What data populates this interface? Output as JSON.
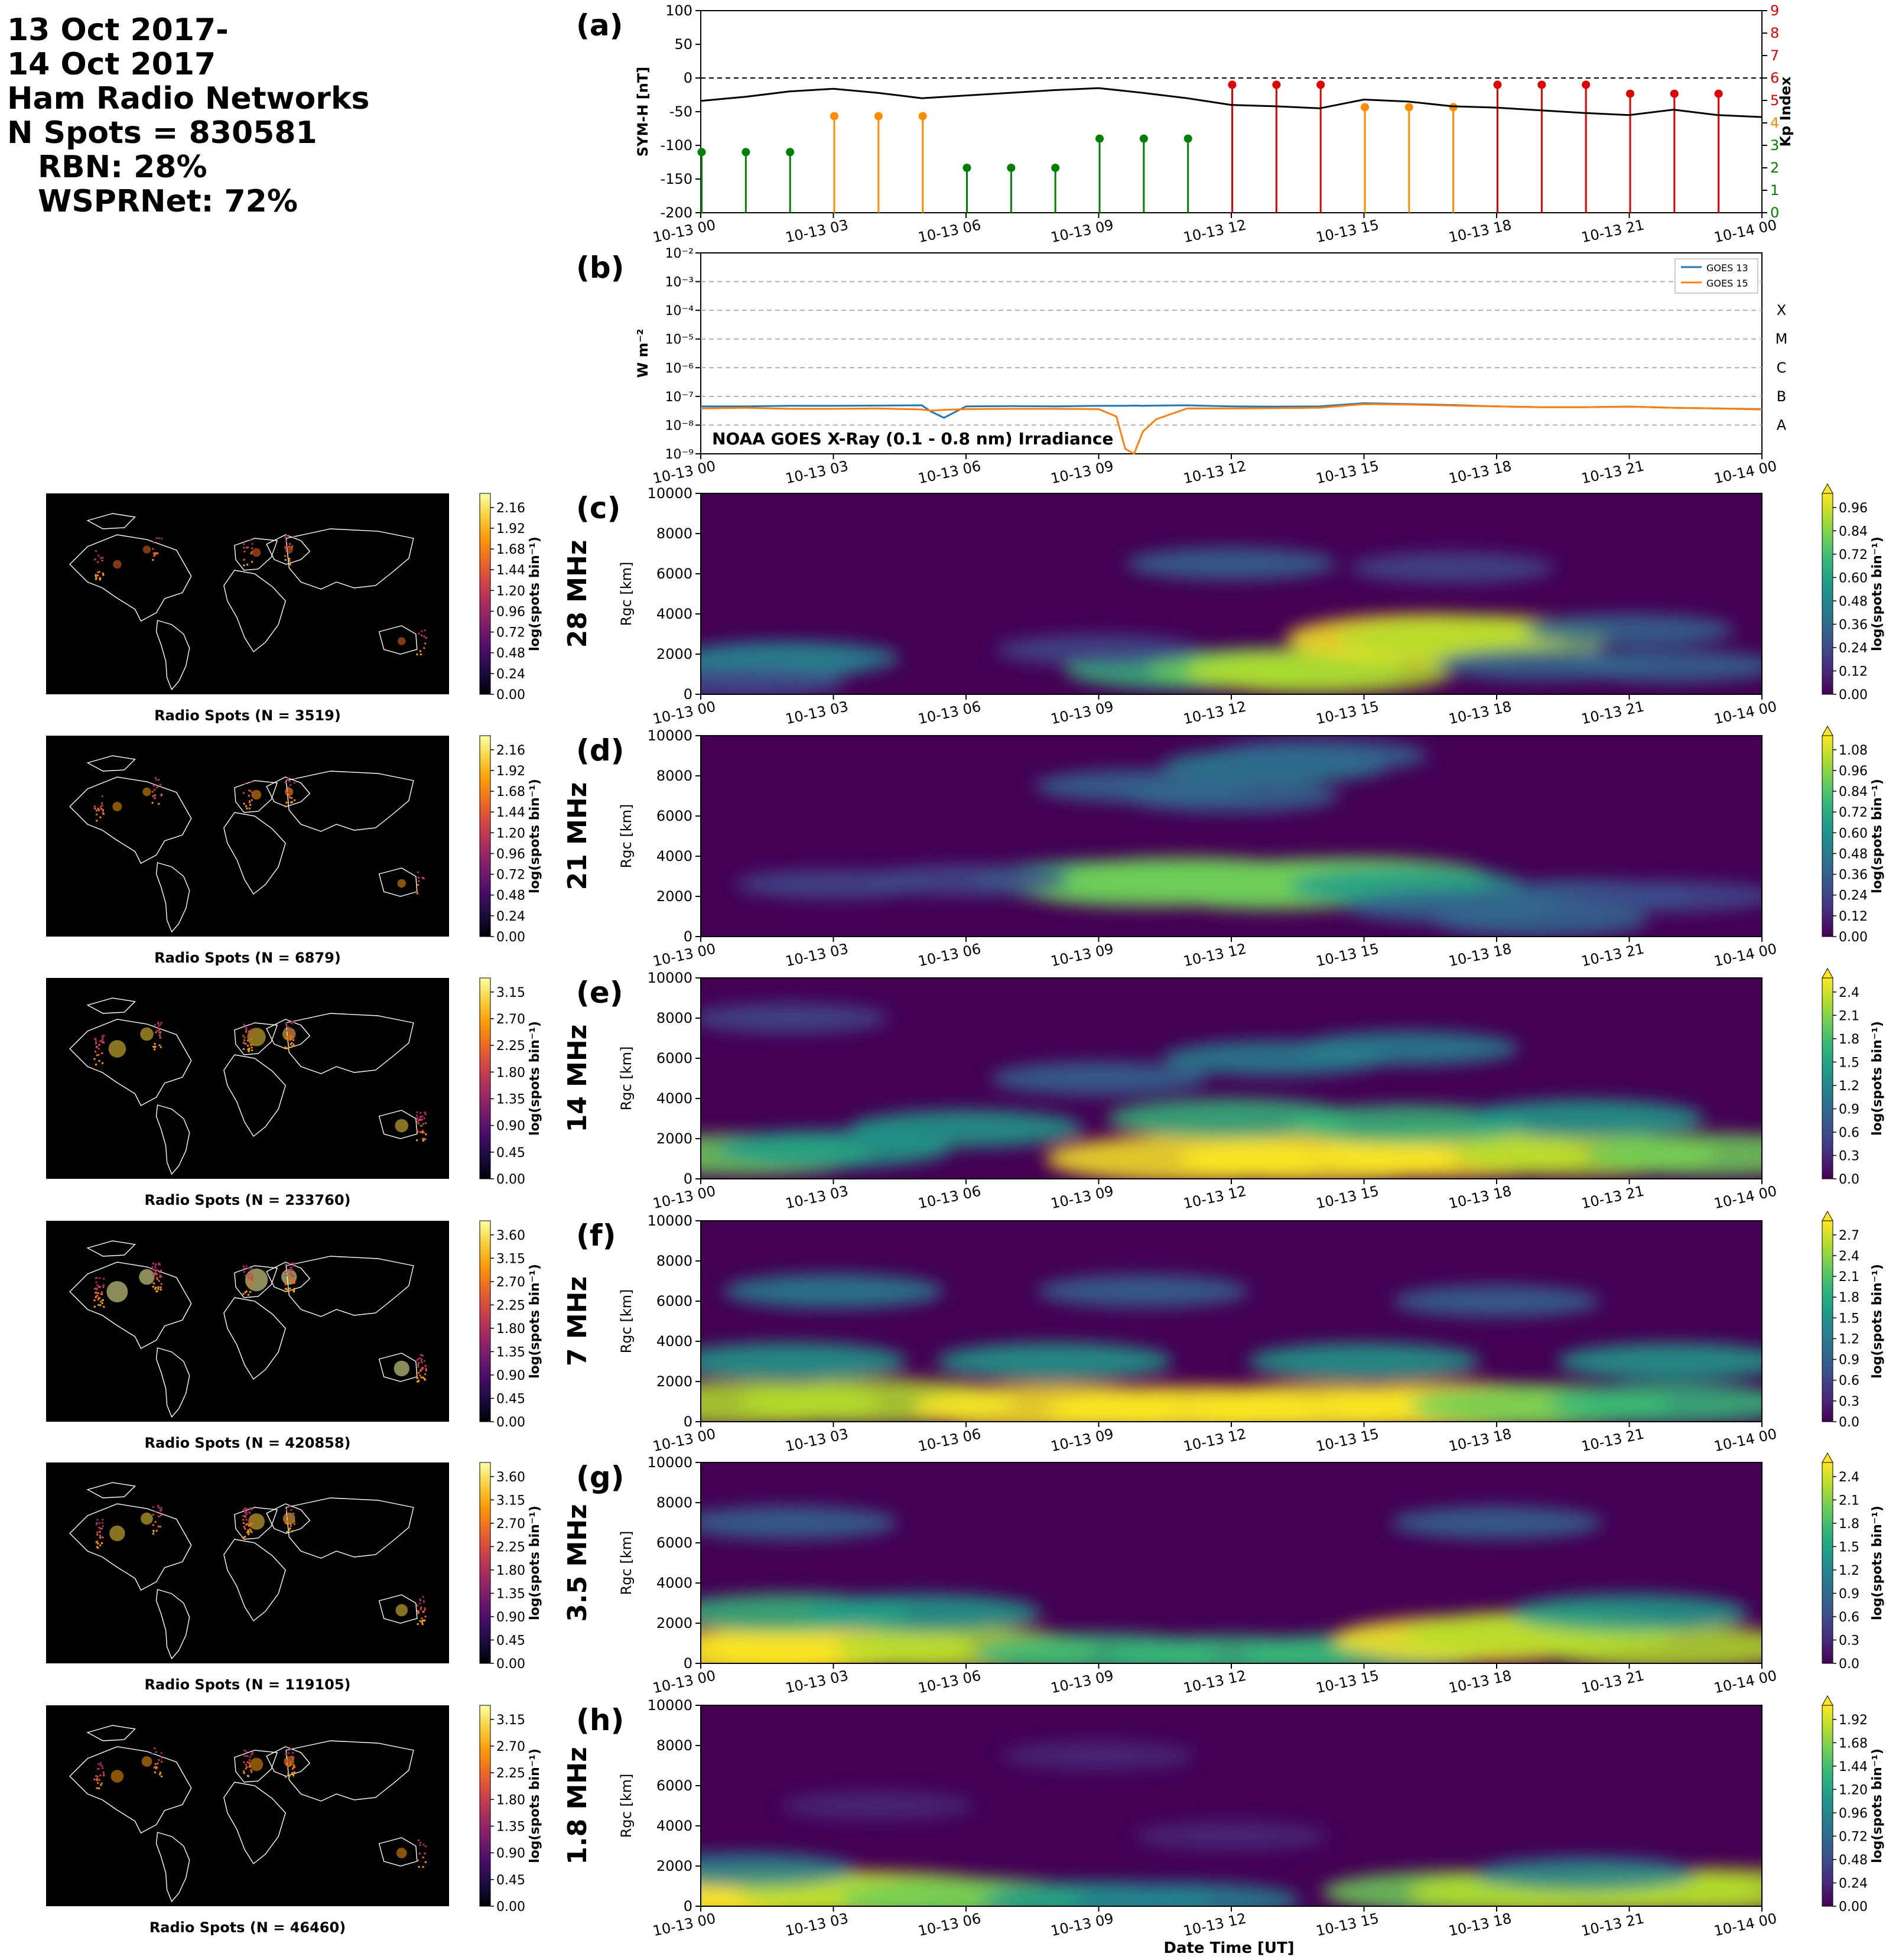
{
  "header": {
    "line1": "13 Oct 2017-",
    "line2": "14 Oct 2017",
    "line3": "Ham Radio Networks",
    "line4": "N Spots = 830581",
    "line5": "RBN: 28%",
    "line6": "WSPRNet: 72%"
  },
  "colors": {
    "sym": "#000000",
    "goes13": "#1f77b4",
    "goes15": "#ff7f0e",
    "kp_low": "#008000",
    "kp_mid": "#ff8c00",
    "kp_high": "#e00000"
  },
  "time_ticks": [
    "10-13 00",
    "10-13 03",
    "10-13 06",
    "10-13 09",
    "10-13 12",
    "10-13 15",
    "10-13 18",
    "10-13 21",
    "10-14 00"
  ],
  "xlabel": "Date Time [UT]",
  "chart_data": [
    {
      "type": "line",
      "panel": "(a)",
      "ylabel": "SYM-H [nT]",
      "y2label": "Kp Index",
      "ylim": [
        -200,
        100
      ],
      "y2lim": [
        0,
        9
      ],
      "yticks": [
        "100",
        "50",
        "0",
        "-50",
        "-100",
        "-150",
        "-200"
      ],
      "y2ticks": [
        "9",
        "8",
        "7",
        "6",
        "5",
        "4",
        "3",
        "2",
        "1",
        "0"
      ],
      "x_hours": [
        0,
        1,
        2,
        3,
        4,
        5,
        6,
        7,
        8,
        9,
        10,
        11,
        12,
        13,
        14,
        15,
        16,
        17,
        18,
        19,
        20,
        21,
        22,
        23,
        24
      ],
      "sym_h": [
        -34,
        -28,
        -20,
        -16,
        -22,
        -30,
        -26,
        -22,
        -18,
        -15,
        -22,
        -30,
        -40,
        -42,
        -45,
        -32,
        -35,
        -42,
        -44,
        -48,
        -52,
        -55,
        -47,
        -55,
        -58
      ],
      "kp_times": [
        0,
        1,
        2,
        3,
        4,
        5,
        6,
        7,
        8,
        9,
        10,
        11,
        12,
        13,
        14,
        15,
        16,
        17,
        18,
        19,
        20,
        21,
        22,
        23
      ],
      "kp": [
        2.7,
        2.7,
        2.7,
        4.3,
        4.3,
        4.3,
        2,
        2,
        2,
        3.3,
        3.3,
        3.3,
        5.7,
        5.7,
        5.7,
        4.7,
        4.7,
        4.7,
        5.7,
        5.7,
        5.7,
        5.3,
        5.3,
        5.3
      ],
      "zero_line": "dashed"
    },
    {
      "type": "line",
      "panel": "(b)",
      "title": "NOAA GOES X-Ray (0.1 - 0.8 nm) Irradiance",
      "ylabel": "W m⁻²",
      "yscale": "log",
      "ylim": [
        1e-09,
        0.01
      ],
      "yticks": [
        "10⁻²",
        "10⁻³",
        "10⁻⁴",
        "10⁻⁵",
        "10⁻⁶",
        "10⁻⁷",
        "10⁻⁸",
        "10⁻⁹"
      ],
      "flare_classes": [
        "X",
        "M",
        "C",
        "B",
        "A"
      ],
      "legend": "top-right",
      "x_hours": [
        0,
        1,
        2,
        3,
        4,
        5,
        5.2,
        5.5,
        6,
        7,
        8,
        9,
        9.4,
        9.6,
        9.8,
        10,
        10.3,
        11,
        12,
        13,
        14,
        15,
        16,
        17,
        18,
        19,
        20,
        21,
        22,
        23,
        24
      ],
      "series": [
        {
          "name": "GOES 13",
          "values": [
            4.5e-08,
            4.5e-08,
            4.7e-08,
            4.7e-08,
            4.8e-08,
            4.9e-08,
            3e-08,
            1.8e-08,
            4.5e-08,
            4.6e-08,
            4.5e-08,
            4.7e-08,
            4.7e-08,
            4.7e-08,
            4.8e-08,
            4.7e-08,
            4.8e-08,
            4.9e-08,
            4.5e-08,
            4.4e-08,
            4.5e-08,
            5.8e-08,
            5.4e-08,
            5e-08,
            4.5e-08,
            4.2e-08,
            4.2e-08,
            4.4e-08,
            4e-08,
            3.8e-08,
            3.6e-08
          ]
        },
        {
          "name": "GOES 15",
          "values": [
            3.8e-08,
            4e-08,
            3.7e-08,
            3.7e-08,
            3.8e-08,
            3.5e-08,
            3.2e-08,
            3.4e-08,
            3.6e-08,
            3.7e-08,
            3.7e-08,
            3.6e-08,
            2e-08,
            1.5e-09,
            1e-09,
            6e-09,
            1.6e-08,
            3.8e-08,
            3.8e-08,
            3.9e-08,
            4e-08,
            5.4e-08,
            5.2e-08,
            4.8e-08,
            4.5e-08,
            4.2e-08,
            4.2e-08,
            4.4e-08,
            4e-08,
            3.8e-08,
            3.5e-08
          ]
        }
      ]
    },
    {
      "type": "heatmap",
      "panel": "(c)",
      "band": "28 MHz",
      "ylabel": "Rgc [km]",
      "ylim": [
        0,
        10000
      ],
      "yticks": [
        "10000",
        "8000",
        "6000",
        "4000",
        "2000",
        "0"
      ],
      "cbar_label": "log(spots bin⁻¹)",
      "cbar_ticks": [
        "0.96",
        "0.84",
        "0.72",
        "0.60",
        "0.48",
        "0.36",
        "0.24",
        "0.12",
        "0.00"
      ],
      "blobs": [
        [
          1.5,
          1500,
          0.3
        ],
        [
          2,
          1800,
          0.4
        ],
        [
          11,
          1200,
          0.6
        ],
        [
          13,
          1300,
          0.7
        ],
        [
          14,
          1100,
          0.8
        ],
        [
          16.5,
          2800,
          1.0
        ],
        [
          17.5,
          2800,
          0.9
        ],
        [
          21,
          3200,
          0.3
        ],
        [
          19,
          1500,
          0.3
        ],
        [
          22,
          1400,
          0.3
        ],
        [
          12,
          6500,
          0.3
        ],
        [
          17,
          6300,
          0.25
        ],
        [
          9,
          2200,
          0.25
        ],
        [
          1,
          500,
          0.2
        ]
      ],
      "map_caption": "Radio Spots (N = 3519)",
      "map_cbar_ticks": [
        "2.16",
        "1.92",
        "1.68",
        "1.44",
        "1.20",
        "0.96",
        "0.72",
        "0.48",
        "0.24",
        "0.00"
      ]
    },
    {
      "type": "heatmap",
      "panel": "(d)",
      "band": "21 MHz",
      "ylabel": "Rgc [km]",
      "ylim": [
        0,
        10000
      ],
      "yticks": [
        "10000",
        "8000",
        "6000",
        "4000",
        "2000",
        "0"
      ],
      "cbar_label": "log(spots bin⁻¹)",
      "cbar_ticks": [
        "1.08",
        "0.96",
        "0.84",
        "0.72",
        "0.60",
        "0.48",
        "0.36",
        "0.24",
        "0.12",
        "0.00"
      ],
      "blobs": [
        [
          9,
          2800,
          0.7
        ],
        [
          10,
          2500,
          0.8
        ],
        [
          11,
          2900,
          0.9
        ],
        [
          12,
          2600,
          0.8
        ],
        [
          13,
          2400,
          0.9
        ],
        [
          14,
          2800,
          0.9
        ],
        [
          15,
          2900,
          0.8
        ],
        [
          16,
          2500,
          0.6
        ],
        [
          13,
          8500,
          0.5
        ],
        [
          14,
          9000,
          0.4
        ],
        [
          10,
          7500,
          0.4
        ],
        [
          12,
          7000,
          0.4
        ],
        [
          17,
          1500,
          0.4
        ],
        [
          19,
          800,
          0.4
        ],
        [
          20,
          2000,
          0.4
        ],
        [
          22,
          2000,
          0.3
        ],
        [
          6,
          2800,
          0.3
        ],
        [
          3,
          2600,
          0.2
        ]
      ],
      "map_caption": "Radio Spots (N = 6879)",
      "map_cbar_ticks": [
        "2.16",
        "1.92",
        "1.68",
        "1.44",
        "1.20",
        "0.96",
        "0.72",
        "0.48",
        "0.24",
        "0.00"
      ]
    },
    {
      "type": "heatmap",
      "panel": "(e)",
      "band": "14 MHz",
      "ylabel": "Rgc [km]",
      "ylim": [
        0,
        10000
      ],
      "yticks": [
        "10000",
        "8000",
        "6000",
        "4000",
        "2000",
        "0"
      ],
      "cbar_label": "log(spots bin⁻¹)",
      "cbar_ticks": [
        "2.4",
        "2.1",
        "1.8",
        "1.5",
        "1.2",
        "0.9",
        "0.6",
        "0.3",
        "0.0"
      ],
      "blobs": [
        [
          1,
          1200,
          1.8
        ],
        [
          3,
          1500,
          1.3
        ],
        [
          11,
          1000,
          2.4
        ],
        [
          14,
          1000,
          2.4
        ],
        [
          17,
          1200,
          2.3
        ],
        [
          20,
          1200,
          2.0
        ],
        [
          23,
          1200,
          1.9
        ],
        [
          6,
          2500,
          1.3
        ],
        [
          12,
          3000,
          1.6
        ],
        [
          16,
          2700,
          1.5
        ],
        [
          20,
          3000,
          1.4
        ],
        [
          13,
          6000,
          1.1
        ],
        [
          16,
          6500,
          1.0
        ],
        [
          9,
          5000,
          0.9
        ],
        [
          2,
          8000,
          0.5
        ]
      ],
      "map_caption": "Radio Spots (N = 233760)",
      "map_cbar_ticks": [
        "3.15",
        "2.70",
        "2.25",
        "1.80",
        "1.35",
        "0.90",
        "0.45",
        "0.00"
      ]
    },
    {
      "type": "heatmap",
      "panel": "(f)",
      "band": "7 MHz",
      "ylabel": "Rgc [km]",
      "ylim": [
        0,
        10000
      ],
      "yticks": [
        "10000",
        "8000",
        "6000",
        "4000",
        "2000",
        "0"
      ],
      "cbar_label": "log(spots bin⁻¹)",
      "cbar_ticks": [
        "2.7",
        "2.4",
        "2.1",
        "1.8",
        "1.5",
        "1.2",
        "0.9",
        "0.6",
        "0.3",
        "0.0"
      ],
      "blobs": [
        [
          1,
          900,
          2.4
        ],
        [
          4,
          1000,
          2.5
        ],
        [
          8,
          700,
          2.7
        ],
        [
          11,
          600,
          2.7
        ],
        [
          14,
          700,
          2.7
        ],
        [
          17,
          800,
          2.7
        ],
        [
          19,
          800,
          2.2
        ],
        [
          22,
          900,
          1.9
        ],
        [
          2,
          3000,
          1.5
        ],
        [
          8,
          3000,
          1.5
        ],
        [
          15,
          3000,
          1.4
        ],
        [
          22,
          3000,
          1.4
        ],
        [
          3,
          6500,
          1.1
        ],
        [
          10,
          6500,
          0.9
        ],
        [
          18,
          6000,
          0.8
        ]
      ],
      "map_caption": "Radio Spots (N = 420858)",
      "map_cbar_ticks": [
        "3.60",
        "3.15",
        "2.70",
        "2.25",
        "1.80",
        "1.35",
        "0.90",
        "0.45",
        "0.00"
      ]
    },
    {
      "type": "heatmap",
      "panel": "(g)",
      "band": "3.5 MHz",
      "ylabel": "Rgc [km]",
      "ylim": [
        0,
        10000
      ],
      "yticks": [
        "10000",
        "8000",
        "6000",
        "4000",
        "2000",
        "0"
      ],
      "cbar_label": "log(spots bin⁻¹)",
      "cbar_ticks": [
        "2.4",
        "2.1",
        "1.8",
        "1.5",
        "1.2",
        "0.9",
        "0.6",
        "0.3",
        "0.0"
      ],
      "blobs": [
        [
          1,
          500,
          2.4
        ],
        [
          3,
          800,
          2.3
        ],
        [
          6,
          700,
          2.0
        ],
        [
          9,
          500,
          1.6
        ],
        [
          12,
          400,
          1.5
        ],
        [
          15,
          500,
          1.6
        ],
        [
          17.5,
          1200,
          2.4
        ],
        [
          19,
          1500,
          2.2
        ],
        [
          22,
          800,
          2.1
        ],
        [
          2,
          2500,
          1.5
        ],
        [
          5,
          2500,
          1.4
        ],
        [
          21,
          2500,
          1.4
        ],
        [
          2,
          7000,
          0.9
        ],
        [
          18,
          7000,
          0.8
        ]
      ],
      "map_caption": "Radio Spots (N = 119105)",
      "map_cbar_ticks": [
        "3.60",
        "3.15",
        "2.70",
        "2.25",
        "1.80",
        "1.35",
        "0.90",
        "0.45",
        "0.00"
      ]
    },
    {
      "type": "heatmap",
      "panel": "(h)",
      "band": "1.8 MHz",
      "ylabel": "Rgc [km]",
      "ylim": [
        0,
        10000
      ],
      "yticks": [
        "10000",
        "8000",
        "6000",
        "4000",
        "2000",
        "0"
      ],
      "cbar_label": "log(spots bin⁻¹)",
      "cbar_ticks": [
        "1.92",
        "1.68",
        "1.44",
        "1.20",
        "0.96",
        "0.72",
        "0.48",
        "0.24",
        "0.00"
      ],
      "blobs": [
        [
          0.5,
          600,
          1.9
        ],
        [
          2,
          700,
          1.9
        ],
        [
          4,
          600,
          1.8
        ],
        [
          6,
          400,
          1.4
        ],
        [
          9,
          300,
          1.0
        ],
        [
          11,
          300,
          0.9
        ],
        [
          17,
          700,
          1.5
        ],
        [
          19,
          700,
          1.6
        ],
        [
          21,
          800,
          1.6
        ],
        [
          23,
          800,
          1.6
        ],
        [
          1,
          1800,
          0.8
        ],
        [
          20,
          1600,
          0.8
        ],
        [
          4,
          5000,
          0.3
        ],
        [
          9,
          7500,
          0.3
        ],
        [
          12,
          3500,
          0.3
        ]
      ],
      "map_caption": "Radio Spots (N = 46460)",
      "map_cbar_ticks": [
        "3.15",
        "2.70",
        "2.25",
        "1.80",
        "1.35",
        "0.90",
        "0.45",
        "0.00"
      ]
    }
  ]
}
